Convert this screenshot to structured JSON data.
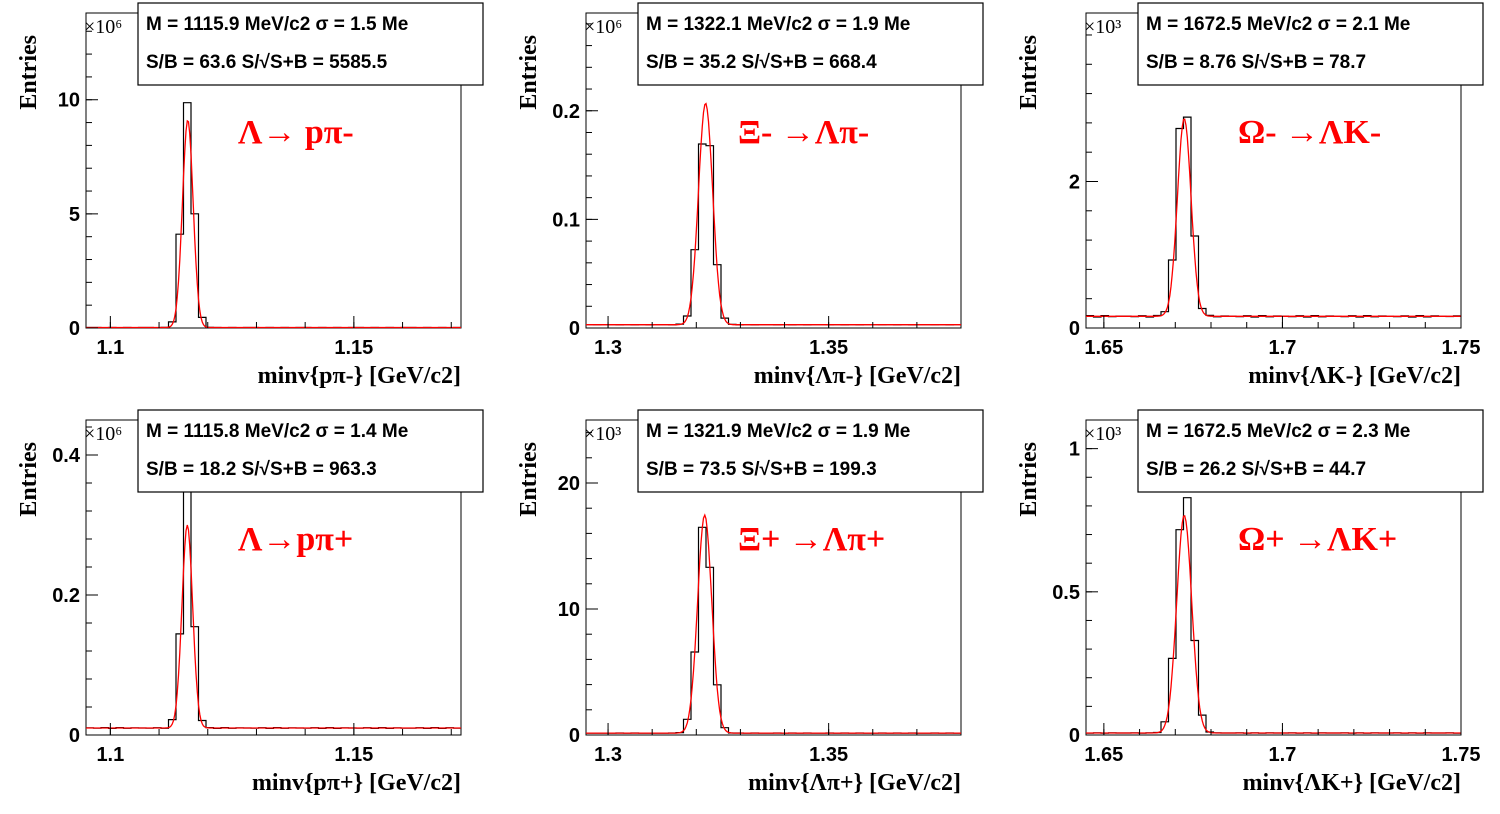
{
  "chart_data": [
    {
      "type": "line",
      "decay_label": "Λ→ pπ-",
      "stats_line1": "M = 1115.9 MeV/c2 σ = 1.5 Me",
      "stats_line2": "S/B = 63.6   S/√S+B = 5585.5",
      "ylabel": "Entries",
      "xlabel": "minv{pπ-} [GeV/c2]",
      "y_multiplier": "×10⁶",
      "xlim": [
        1.095,
        1.172
      ],
      "ylim": [
        0,
        13.8
      ],
      "x_ticks": [
        1.1,
        1.15
      ],
      "y_ticks": [
        0,
        5,
        10
      ],
      "peak_mean": 1.1159,
      "peak_sigma": 0.0011,
      "peak_height": 10.2,
      "fit_height": 9.1,
      "background": 0.02,
      "background_slope": 0
    },
    {
      "type": "line",
      "decay_label": "Ξ- →Λπ-",
      "stats_line1": "M = 1322.1 MeV/c2 σ = 1.9 Me",
      "stats_line2": "S/B = 35.2   S/√S+B = 668.4",
      "ylabel": "Entries",
      "xlabel": "minv{Λπ-} [GeV/c2]",
      "y_multiplier": "×10⁶",
      "xlim": [
        1.295,
        1.38
      ],
      "ylim": [
        0,
        0.29
      ],
      "x_ticks": [
        1.3,
        1.35
      ],
      "y_ticks": [
        0,
        0.1,
        0.2
      ],
      "peak_mean": 1.3221,
      "peak_sigma": 0.0016,
      "peak_height": 0.185,
      "fit_height": 0.204,
      "background": 0.003,
      "background_slope": 0
    },
    {
      "type": "line",
      "decay_label": "Ω- →ΛK-",
      "stats_line1": "M = 1672.5 MeV/c2 σ = 2.1 Me",
      "stats_line2": "S/B = 8.76   S/√S+B = 78.7",
      "ylabel": "Entries",
      "xlabel": "minv{ΛK-} [GeV/c2]",
      "y_multiplier": "×10³",
      "xlim": [
        1.645,
        1.75
      ],
      "ylim": [
        0,
        4.3
      ],
      "x_ticks": [
        1.65,
        1.7,
        1.75
      ],
      "y_ticks": [
        0,
        2
      ],
      "peak_mean": 1.6725,
      "peak_sigma": 0.0019,
      "peak_height": 3.0,
      "fit_height": 2.7,
      "background": 0.16,
      "background_slope": 0
    },
    {
      "type": "line",
      "decay_label": "Λ→pπ+",
      "stats_line1": "M = 1115.8 MeV/c2 σ = 1.4 Me",
      "stats_line2": "S/B = 18.2   S/√S+B = 963.3",
      "ylabel": "Entries",
      "xlabel": "minv{pπ+} [GeV/c2]",
      "y_multiplier": "×10⁶",
      "xlim": [
        1.095,
        1.172
      ],
      "ylim": [
        0,
        0.45
      ],
      "x_ticks": [
        1.1,
        1.15
      ],
      "y_ticks": [
        0,
        0.2,
        0.4
      ],
      "peak_mean": 1.1158,
      "peak_sigma": 0.0011,
      "peak_height": 0.33,
      "fit_height": 0.29,
      "background": 0.01,
      "background_slope": 0
    },
    {
      "type": "line",
      "decay_label": "Ξ+ →Λπ+",
      "stats_line1": "M = 1321.9 MeV/c2 σ = 1.9 Me",
      "stats_line2": "S/B = 73.5   S/√S+B = 199.3",
      "ylabel": "Entries",
      "xlabel": "minv{Λπ+} [GeV/c2]",
      "y_multiplier": "×10³",
      "xlim": [
        1.295,
        1.38
      ],
      "ylim": [
        0,
        25
      ],
      "x_ticks": [
        1.3,
        1.35
      ],
      "y_ticks": [
        0,
        10,
        20
      ],
      "peak_mean": 1.3219,
      "peak_sigma": 0.0016,
      "peak_height": 16.2,
      "fit_height": 17.3,
      "background": 0.15,
      "background_slope": 0
    },
    {
      "type": "line",
      "decay_label": "Ω+ →ΛK+",
      "stats_line1": "M = 1672.5 MeV/c2 σ = 2.3 Me",
      "stats_line2": "S/B = 26.2   S/√S+B = 44.7",
      "ylabel": "Entries",
      "xlabel": "minv{ΛK+} [GeV/c2]",
      "y_multiplier": "×10³",
      "xlim": [
        1.645,
        1.75
      ],
      "ylim": [
        0,
        1.1
      ],
      "x_ticks": [
        1.65,
        1.7,
        1.75
      ],
      "y_ticks": [
        0,
        0.5,
        1
      ],
      "peak_mean": 1.6725,
      "peak_sigma": 0.0021,
      "peak_height": 0.82,
      "fit_height": 0.76,
      "background": 0.007,
      "background_slope": 0
    }
  ]
}
